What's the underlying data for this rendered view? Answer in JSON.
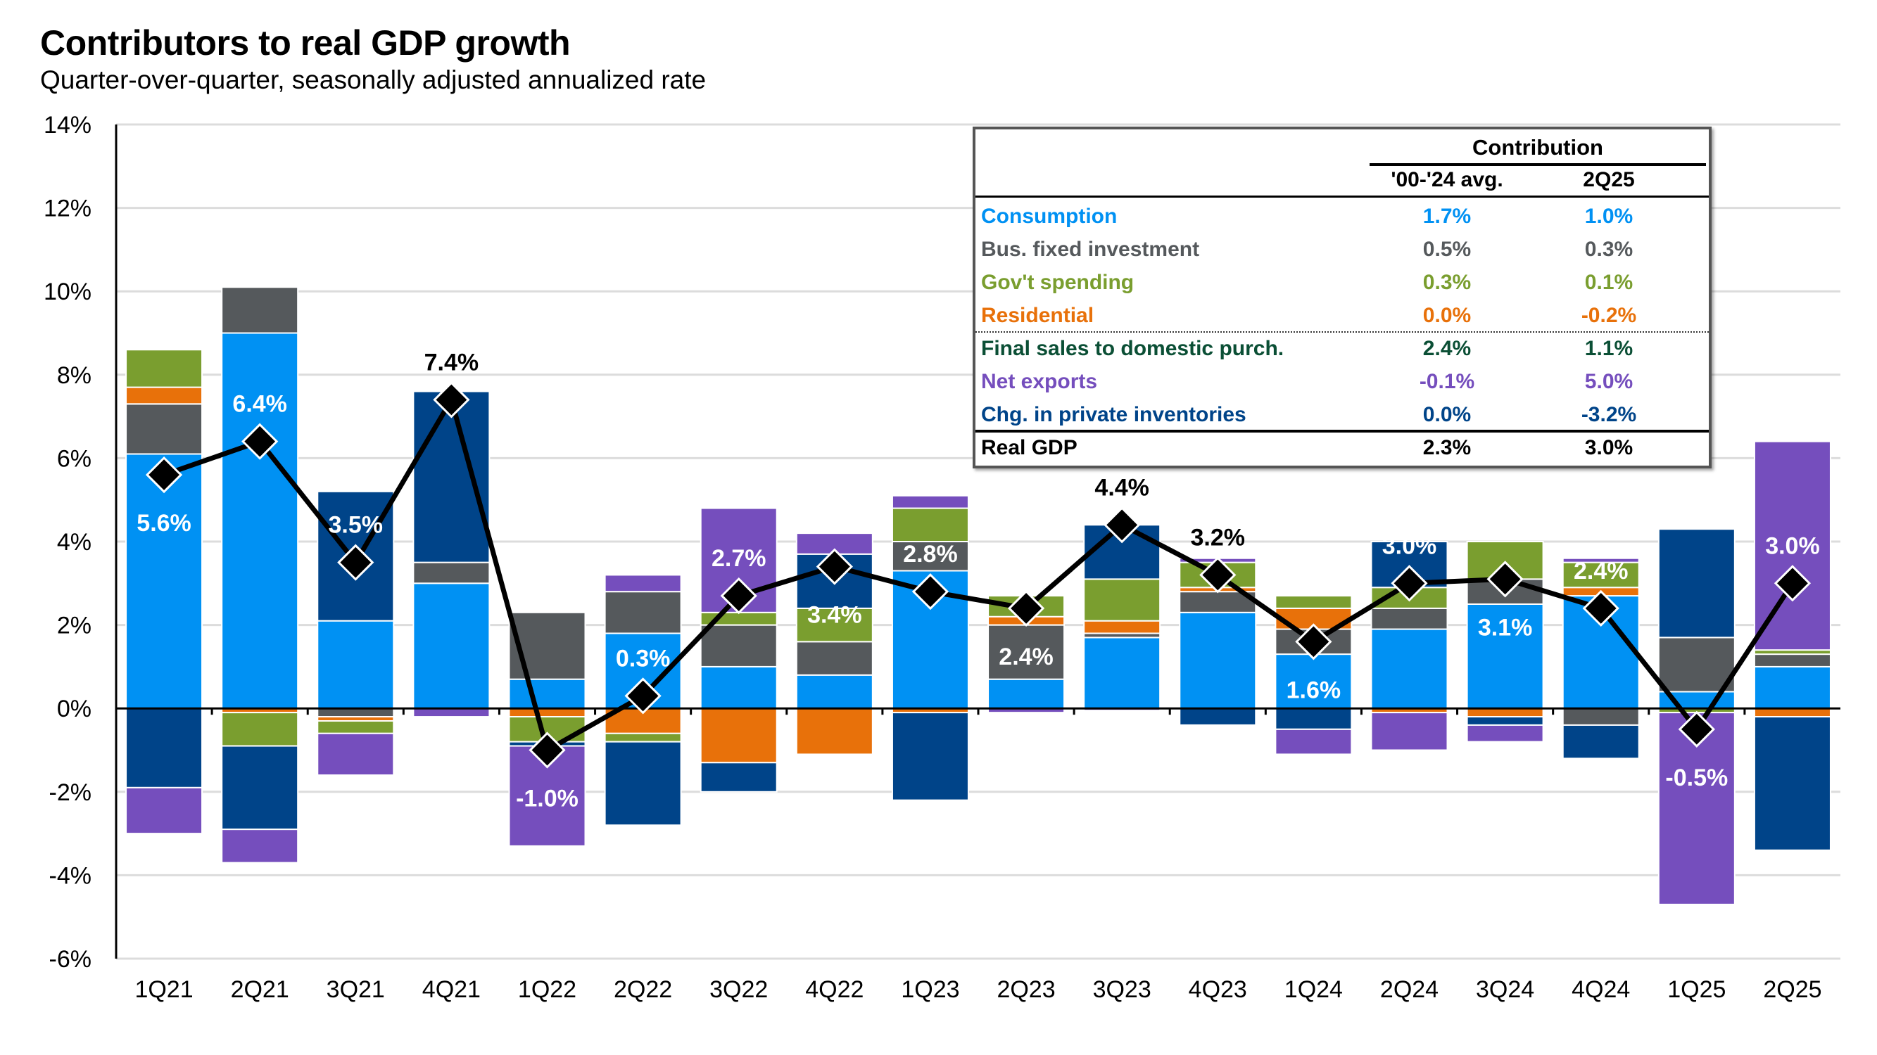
{
  "header": {
    "title": "Contributors to real GDP growth",
    "subtitle": "Quarter-over-quarter, seasonally adjusted annualized rate"
  },
  "colors": {
    "consumption": "#0091f3",
    "bus_fixed_investment": "#55595c",
    "govt_spending": "#7a9e2f",
    "residential": "#e8710a",
    "final_sales": "#0b4f35",
    "net_exports": "#754ebd",
    "inventories": "#004489",
    "real_gdp": "#000000"
  },
  "table": {
    "group_header": "Contribution",
    "col_a": "'00-'24 avg.",
    "col_b": "2Q25",
    "rows": [
      {
        "label": "Consumption",
        "a": "1.7%",
        "b": "1.0%",
        "key": "consumption"
      },
      {
        "label": "Bus. fixed investment",
        "a": "0.5%",
        "b": "0.3%",
        "key": "bus_fixed_investment"
      },
      {
        "label": "Gov't spending",
        "a": "0.3%",
        "b": "0.1%",
        "key": "govt_spending"
      },
      {
        "label": "Residential",
        "a": "0.0%",
        "b": "-0.2%",
        "key": "residential"
      },
      {
        "label": "Final sales to domestic purch.",
        "a": "2.4%",
        "b": "1.1%",
        "key": "final_sales"
      },
      {
        "label": "Net exports",
        "a": "-0.1%",
        "b": "5.0%",
        "key": "net_exports"
      },
      {
        "label": "Chg. in private inventories",
        "a": "0.0%",
        "b": "-3.2%",
        "key": "inventories"
      },
      {
        "label": "Real GDP",
        "a": "2.3%",
        "b": "3.0%",
        "key": "real_gdp"
      }
    ]
  },
  "chart_data": {
    "type": "bar",
    "stacked": true,
    "title": "Contributors to real GDP growth",
    "subtitle": "Quarter-over-quarter, seasonally adjusted annualized rate",
    "xlabel": "",
    "ylabel": "",
    "ylim": [
      -6,
      14
    ],
    "yticks": [
      -6,
      -4,
      -2,
      0,
      2,
      4,
      6,
      8,
      10,
      12,
      14
    ],
    "ytick_labels": [
      "-6%",
      "-4%",
      "-2%",
      "0%",
      "2%",
      "4%",
      "6%",
      "8%",
      "10%",
      "12%",
      "14%"
    ],
    "grid": true,
    "categories": [
      "1Q21",
      "2Q21",
      "3Q21",
      "4Q21",
      "1Q22",
      "2Q22",
      "3Q22",
      "4Q22",
      "1Q23",
      "2Q23",
      "3Q23",
      "4Q23",
      "1Q24",
      "2Q24",
      "3Q24",
      "4Q24",
      "1Q25",
      "2Q25"
    ],
    "series": [
      {
        "name": "Consumption",
        "key": "consumption",
        "values": [
          6.1,
          9.0,
          2.1,
          3.0,
          0.7,
          1.8,
          1.0,
          0.8,
          3.3,
          0.7,
          1.7,
          2.3,
          1.3,
          1.9,
          2.5,
          2.7,
          0.4,
          1.0
        ]
      },
      {
        "name": "Bus. fixed investment",
        "key": "bus_fixed_investment",
        "values": [
          1.2,
          1.1,
          -0.2,
          0.5,
          1.6,
          1.0,
          1.0,
          0.8,
          0.7,
          1.3,
          0.1,
          0.5,
          0.6,
          0.5,
          0.6,
          -0.4,
          1.3,
          0.3
        ]
      },
      {
        "name": "Residential",
        "key": "residential",
        "values": [
          0.4,
          -0.1,
          -0.1,
          0.0,
          -0.2,
          -0.6,
          -1.3,
          -1.1,
          -0.1,
          0.2,
          0.3,
          0.1,
          0.5,
          -0.1,
          -0.2,
          0.2,
          0.0,
          -0.2
        ]
      },
      {
        "name": "Gov't spending",
        "key": "govt_spending",
        "values": [
          0.9,
          -0.8,
          -0.3,
          0.0,
          -0.6,
          -0.2,
          0.3,
          0.8,
          0.8,
          0.5,
          1.0,
          0.6,
          0.3,
          0.5,
          0.9,
          0.6,
          -0.1,
          0.1
        ]
      },
      {
        "name": "Chg. in private inventories",
        "key": "inventories",
        "values": [
          -1.9,
          -2.0,
          3.1,
          4.1,
          -0.1,
          -2.0,
          -0.7,
          1.3,
          -2.1,
          0.0,
          1.3,
          -0.4,
          -0.5,
          1.1,
          -0.2,
          -0.8,
          2.6,
          -3.2
        ]
      },
      {
        "name": "Net exports",
        "key": "net_exports",
        "values": [
          -1.1,
          -0.8,
          -1.0,
          -0.2,
          -2.4,
          0.4,
          2.5,
          0.5,
          0.3,
          -0.1,
          -0.05,
          0.1,
          -0.6,
          -0.9,
          -0.4,
          0.1,
          -4.6,
          5.0
        ]
      }
    ],
    "line": {
      "name": "Real GDP",
      "values": [
        5.6,
        6.4,
        3.5,
        7.4,
        -1.0,
        0.3,
        2.7,
        3.4,
        2.8,
        2.4,
        4.4,
        3.2,
        1.6,
        3.0,
        3.1,
        2.4,
        -0.5,
        3.0
      ],
      "labels": [
        "5.6%",
        "6.4%",
        "3.5%",
        "7.4%",
        "-1.0%",
        "0.3%",
        "2.7%",
        "3.4%",
        "2.8%",
        "2.4%",
        "4.4%",
        "3.2%",
        "1.6%",
        "3.0%",
        "3.1%",
        "2.4%",
        "-0.5%",
        "3.0%"
      ],
      "label_style": [
        "white-below",
        "white-above",
        "white-above",
        "black-above",
        "white-below",
        "white-above",
        "white-above",
        "white-below",
        "white-above",
        "white-below",
        "black-above",
        "black-above",
        "white-below",
        "white-above",
        "white-below",
        "white-above",
        "white-below",
        "white-above"
      ]
    },
    "legend": "table-top-right"
  }
}
